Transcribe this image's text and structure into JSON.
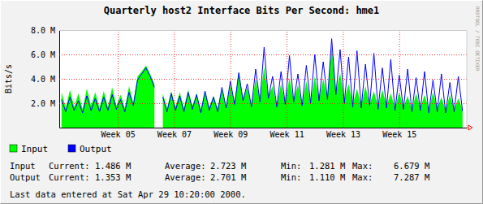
{
  "chart_data": {
    "type": "line",
    "title": "Quarterly host2 Interface Bits Per Second: hme1",
    "y_label": "Bits/s",
    "annotations": [
      "RRDTOOL / TOBI OETIKER"
    ],
    "x": [
      3,
      3.15,
      3.3,
      3.45,
      3.6,
      3.75,
      3.9,
      4.05,
      4.2,
      4.35,
      4.5,
      4.65,
      4.8,
      4.95,
      5.1,
      5.25,
      5.4,
      5.55,
      5.7,
      5.85,
      6,
      6.15,
      6.3,
      6.45,
      6.6,
      6.75,
      6.9,
      7.05,
      7.2,
      7.35,
      7.5,
      7.65,
      7.8,
      7.95,
      8.1,
      8.25,
      8.4,
      8.55,
      8.7,
      8.85,
      9,
      9.15,
      9.3,
      9.45,
      9.6,
      9.75,
      9.9,
      10.05,
      10.2,
      10.35,
      10.5,
      10.65,
      10.8,
      10.95,
      11.1,
      11.25,
      11.4,
      11.55,
      11.7,
      11.85,
      12,
      12.15,
      12.3,
      12.45,
      12.6,
      12.75,
      12.9,
      13.05,
      13.2,
      13.35,
      13.5,
      13.65,
      13.8,
      13.95,
      14.1,
      14.25,
      14.4,
      14.55,
      14.7,
      14.85,
      15,
      15.15,
      15.3,
      15.45,
      15.6,
      15.75,
      15.9,
      16.05,
      16.2,
      16.35,
      16.5,
      16.65,
      16.8,
      16.95,
      17.1,
      17.25
    ],
    "series": [
      {
        "name": "Input",
        "type": "area",
        "color": "#00ff00",
        "values": [
          2900000,
          1600000,
          3100000,
          1700000,
          2800000,
          1500000,
          3200000,
          1800000,
          2900000,
          1600000,
          3000000,
          1700000,
          3300000,
          1800000,
          2700000,
          1600000,
          3400000,
          2000000,
          4200000,
          4600000,
          5100000,
          4400000,
          3600000,
          null,
          2800000,
          1600000,
          3000000,
          1700000,
          2900000,
          1600000,
          3100000,
          1800000,
          2800000,
          1500000,
          3000000,
          1700000,
          2600000,
          1600000,
          3200000,
          1800000,
          3500000,
          2000000,
          4600000,
          2400000,
          3300000,
          1800000,
          4000000,
          2200000,
          5000000,
          2600000,
          3400000,
          1800000,
          3600000,
          2000000,
          4100000,
          2200000,
          3500000,
          1900000,
          3800000,
          2100000,
          4200000,
          2300000,
          4000000,
          2400000,
          6680000,
          2800000,
          4500000,
          2200000,
          3600000,
          1900000,
          3200000,
          1800000,
          3400000,
          1900000,
          3000000,
          1700000,
          3100000,
          1800000,
          2800000,
          1600000,
          2900000,
          1700000,
          2600000,
          1500000,
          2800000,
          1600000,
          2700000,
          1500000,
          2900000,
          1600000,
          2500000,
          1400000,
          2700000,
          1500000,
          2400000,
          1500000
        ]
      },
      {
        "name": "Output",
        "type": "line",
        "color": "#0000ff",
        "values": [
          2300000,
          1300000,
          2500000,
          1400000,
          2200000,
          1200000,
          2600000,
          1400000,
          2400000,
          1300000,
          2500000,
          1400000,
          2700000,
          1500000,
          2300000,
          1300000,
          2900000,
          1800000,
          3900000,
          4400000,
          4900000,
          4200000,
          3300000,
          null,
          2500000,
          1300000,
          2800000,
          1400000,
          2600000,
          1300000,
          2900000,
          1500000,
          2700000,
          1200000,
          3000000,
          1400000,
          2500000,
          1300000,
          3300000,
          1600000,
          3800000,
          1900000,
          4500000,
          2200000,
          3600000,
          1700000,
          4800000,
          2100000,
          6600000,
          2400000,
          4200000,
          1700000,
          4600000,
          1900000,
          5900000,
          2100000,
          4400000,
          1800000,
          5100000,
          2000000,
          6000000,
          2200000,
          5400000,
          2300000,
          7290000,
          2700000,
          6400000,
          2000000,
          5800000,
          1700000,
          6300000,
          1600000,
          5200000,
          1800000,
          6100000,
          1500000,
          4900000,
          1600000,
          5600000,
          1400000,
          4300000,
          1500000,
          4800000,
          1300000,
          4100000,
          1400000,
          4600000,
          1200000,
          3900000,
          1300000,
          4400000,
          1200000,
          3700000,
          1300000,
          4200000,
          1350000
        ]
      }
    ],
    "xlim": [
      2.92,
      17.4
    ],
    "xticks": [
      {
        "value": 5,
        "label": "Week 05"
      },
      {
        "value": 7,
        "label": "Week 07"
      },
      {
        "value": 9,
        "label": "Week 09"
      },
      {
        "value": 11,
        "label": "Week 11"
      },
      {
        "value": 13,
        "label": "Week 13"
      },
      {
        "value": 15,
        "label": "Week 15"
      }
    ],
    "ylim": [
      0,
      8000000
    ],
    "yticks": [
      {
        "value": 2000000,
        "label": "2.0 M"
      },
      {
        "value": 4000000,
        "label": "4.0 M"
      },
      {
        "value": 6000000,
        "label": "6.0 M"
      },
      {
        "value": 8000000,
        "label": "8.0 M"
      }
    ],
    "grid": true,
    "legend": "bottom",
    "stats": [
      [
        "Input",
        "Current:",
        "1.486 M",
        "Average:",
        "2.723 M",
        "Min:",
        "1.281 M",
        "Max:",
        "6.679 M"
      ],
      [
        "Output",
        "Current:",
        "1.353 M",
        "Average:",
        "2.701 M",
        "Min:",
        "1.110 M",
        "Max:",
        "7.287 M"
      ]
    ],
    "footer": "Last data entered at Sat Apr 29 10:20:00 2000."
  }
}
